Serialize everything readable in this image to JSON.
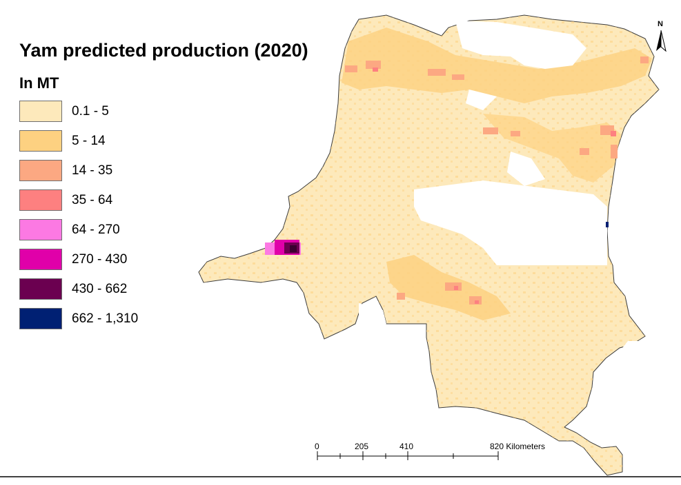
{
  "title": "Yam predicted production (2020)",
  "legend": {
    "title": "In MT",
    "items": [
      {
        "label": "0.1 - 5",
        "color": "#fde9bb"
      },
      {
        "label": "5 - 14",
        "color": "#fdd181"
      },
      {
        "label": "14 - 35",
        "color": "#fca882"
      },
      {
        "label": "35 - 64",
        "color": "#fd8080"
      },
      {
        "label": "64 - 270",
        "color": "#fc79e3"
      },
      {
        "label": "270 - 430",
        "color": "#e000a9"
      },
      {
        "label": "430 - 662",
        "color": "#6b0050"
      },
      {
        "label": "662 - 1,310",
        "color": "#002073"
      }
    ]
  },
  "scale_bar": {
    "ticks": [
      "0",
      "205",
      "410",
      "820 Kilometers"
    ]
  },
  "north_arrow": {
    "label": "N"
  },
  "colors": {
    "boundary": "#3a3a3a",
    "base": "#fde9bb",
    "mid": "#fdd181",
    "high": "#fca882",
    "hot": "#fd8080",
    "magenta": "#e000a9",
    "dark": "#6b0050",
    "navy": "#002073"
  }
}
